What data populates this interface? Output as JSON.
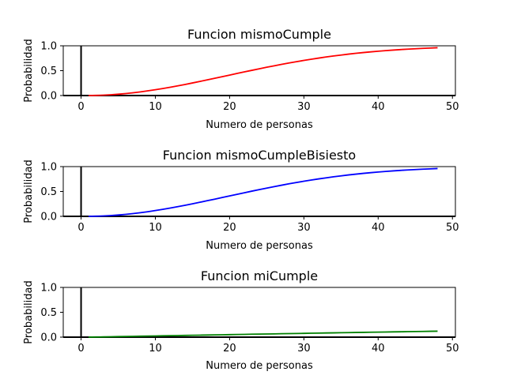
{
  "chart_data": [
    {
      "type": "line",
      "title": "Funcion mismoCumple",
      "xlabel": "Numero de personas",
      "ylabel": "Probabilidad",
      "xlim": [
        -2.4,
        50.4
      ],
      "ylim": [
        0,
        1
      ],
      "xticks": [
        "0",
        "10",
        "20",
        "30",
        "40",
        "50"
      ],
      "yticks": [
        "0.0",
        "0.5",
        "1.0"
      ],
      "grid": false,
      "color": "#ff0000",
      "x": [
        1,
        2,
        3,
        4,
        5,
        6,
        7,
        8,
        9,
        10,
        11,
        12,
        13,
        14,
        15,
        16,
        17,
        18,
        19,
        20,
        21,
        22,
        23,
        24,
        25,
        26,
        27,
        28,
        29,
        30,
        31,
        32,
        33,
        34,
        35,
        36,
        37,
        38,
        39,
        40,
        41,
        42,
        43,
        44,
        45,
        46,
        47,
        48
      ],
      "y": [
        0,
        0.003,
        0.008,
        0.016,
        0.027,
        0.04,
        0.056,
        0.074,
        0.095,
        0.117,
        0.141,
        0.167,
        0.194,
        0.223,
        0.253,
        0.284,
        0.315,
        0.347,
        0.379,
        0.411,
        0.444,
        0.476,
        0.507,
        0.538,
        0.569,
        0.598,
        0.627,
        0.654,
        0.681,
        0.706,
        0.73,
        0.753,
        0.775,
        0.795,
        0.814,
        0.832,
        0.849,
        0.864,
        0.878,
        0.891,
        0.903,
        0.914,
        0.924,
        0.933,
        0.941,
        0.948,
        0.955,
        0.961
      ]
    },
    {
      "type": "line",
      "title": "Funcion mismoCumpleBisiesto",
      "xlabel": "Numero de personas",
      "ylabel": "Probabilidad",
      "xlim": [
        -2.4,
        50.4
      ],
      "ylim": [
        0,
        1
      ],
      "xticks": [
        "0",
        "10",
        "20",
        "30",
        "40",
        "50"
      ],
      "yticks": [
        "0.0",
        "0.5",
        "1.0"
      ],
      "grid": false,
      "color": "#0000ff",
      "x": [
        1,
        2,
        3,
        4,
        5,
        6,
        7,
        8,
        9,
        10,
        11,
        12,
        13,
        14,
        15,
        16,
        17,
        18,
        19,
        20,
        21,
        22,
        23,
        24,
        25,
        26,
        27,
        28,
        29,
        30,
        31,
        32,
        33,
        34,
        35,
        36,
        37,
        38,
        39,
        40,
        41,
        42,
        43,
        44,
        45,
        46,
        47,
        48
      ],
      "y": [
        0,
        0.003,
        0.008,
        0.016,
        0.027,
        0.04,
        0.056,
        0.074,
        0.094,
        0.117,
        0.141,
        0.167,
        0.194,
        0.223,
        0.252,
        0.283,
        0.315,
        0.346,
        0.379,
        0.411,
        0.443,
        0.475,
        0.507,
        0.538,
        0.568,
        0.598,
        0.626,
        0.654,
        0.68,
        0.706,
        0.73,
        0.753,
        0.774,
        0.795,
        0.814,
        0.832,
        0.848,
        0.864,
        0.878,
        0.891,
        0.903,
        0.914,
        0.924,
        0.933,
        0.941,
        0.948,
        0.955,
        0.961
      ]
    },
    {
      "type": "line",
      "title": "Funcion miCumple",
      "xlabel": "Numero de personas",
      "ylabel": "Probabilidad",
      "xlim": [
        -2.4,
        50.4
      ],
      "ylim": [
        0,
        1
      ],
      "xticks": [
        "0",
        "10",
        "20",
        "30",
        "40",
        "50"
      ],
      "yticks": [
        "0.0",
        "0.5",
        "1.0"
      ],
      "grid": false,
      "color": "#008000",
      "x": [
        1,
        2,
        3,
        4,
        5,
        6,
        7,
        8,
        9,
        10,
        11,
        12,
        13,
        14,
        15,
        16,
        17,
        18,
        19,
        20,
        21,
        22,
        23,
        24,
        25,
        26,
        27,
        28,
        29,
        30,
        31,
        32,
        33,
        34,
        35,
        36,
        37,
        38,
        39,
        40,
        41,
        42,
        43,
        44,
        45,
        46,
        47,
        48
      ],
      "y": [
        0,
        0.003,
        0.005,
        0.008,
        0.011,
        0.014,
        0.016,
        0.019,
        0.022,
        0.024,
        0.027,
        0.03,
        0.032,
        0.035,
        0.038,
        0.04,
        0.043,
        0.046,
        0.048,
        0.051,
        0.054,
        0.056,
        0.059,
        0.061,
        0.064,
        0.066,
        0.069,
        0.071,
        0.074,
        0.076,
        0.079,
        0.081,
        0.084,
        0.086,
        0.089,
        0.091,
        0.094,
        0.096,
        0.099,
        0.101,
        0.103,
        0.106,
        0.108,
        0.111,
        0.113,
        0.115,
        0.118,
        0.12
      ]
    }
  ]
}
